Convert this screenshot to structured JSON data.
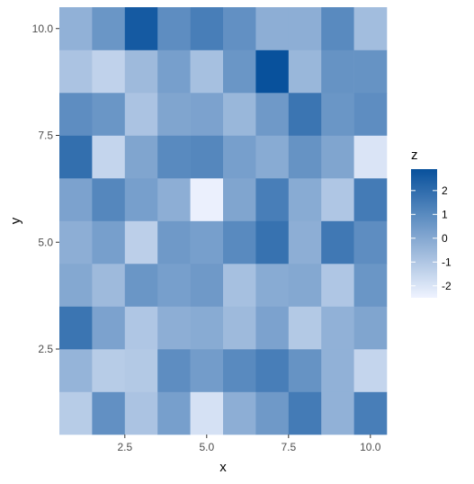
{
  "chart_data": {
    "type": "heatmap",
    "title": "",
    "xlabel": "x",
    "ylabel": "y",
    "xlim": [
      0.5,
      10.5
    ],
    "ylim": [
      0.5,
      10.5
    ],
    "x_ticks": [
      2.5,
      5.0,
      7.5,
      10.0
    ],
    "x_tick_labels": [
      "2.5",
      "5.0",
      "7.5",
      "10.0"
    ],
    "y_ticks": [
      2.5,
      5.0,
      7.5,
      10.0
    ],
    "y_tick_labels": [
      "2.5",
      "5.0",
      "7.5",
      "10.0"
    ],
    "legend": {
      "title": "z",
      "placement": "right",
      "ticks": [
        2,
        1,
        0,
        -1,
        -2
      ],
      "tick_labels": [
        "2",
        "1",
        "0",
        "-1",
        "-2"
      ],
      "zlim": [
        -2.5,
        2.9
      ],
      "color_low": "#EFF3FF",
      "color_high": "#08519C"
    },
    "x": [
      1,
      2,
      3,
      4,
      5,
      6,
      7,
      8,
      9,
      10
    ],
    "y": [
      1,
      2,
      3,
      4,
      5,
      6,
      7,
      8,
      9,
      10
    ],
    "z": [
      [
        -1.2,
        0.8,
        -0.9,
        0.3,
        -1.9,
        -0.2,
        0.5,
        1.5,
        -0.3,
        1.4
      ],
      [
        -0.4,
        -1.2,
        -1.1,
        0.9,
        0.4,
        1.0,
        1.4,
        0.7,
        -0.3,
        -1.5
      ],
      [
        1.7,
        0.2,
        -1.0,
        -0.2,
        -0.1,
        -0.6,
        0.2,
        -1.1,
        -0.3,
        0.1
      ],
      [
        0.0,
        -0.6,
        0.6,
        0.3,
        0.5,
        -0.8,
        -0.1,
        0.0,
        -1.0,
        0.6
      ],
      [
        -0.2,
        0.3,
        -1.3,
        0.5,
        0.3,
        1.0,
        1.8,
        -0.2,
        1.6,
        0.9
      ],
      [
        0.2,
        1.1,
        0.3,
        -0.2,
        -2.4,
        0.1,
        1.4,
        -0.1,
        -1.0,
        1.5
      ],
      [
        1.9,
        -1.5,
        0.1,
        1.0,
        1.1,
        0.3,
        -0.1,
        0.7,
        0.1,
        -2.0
      ],
      [
        0.9,
        0.6,
        -0.9,
        0.1,
        0.2,
        -0.5,
        0.5,
        1.7,
        0.6,
        0.9
      ],
      [
        -0.9,
        -1.4,
        -0.6,
        0.3,
        -0.8,
        0.6,
        2.9,
        -0.5,
        0.7,
        0.7
      ],
      [
        -0.3,
        0.6,
        2.6,
        0.9,
        1.4,
        0.8,
        -0.2,
        -0.2,
        1.0,
        -0.7
      ]
    ]
  }
}
